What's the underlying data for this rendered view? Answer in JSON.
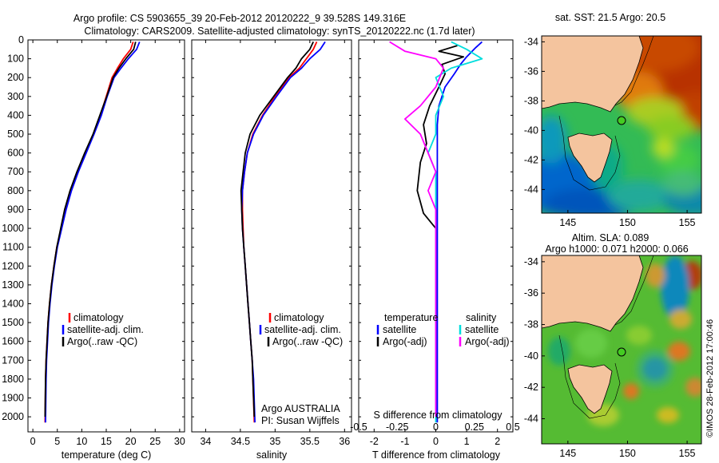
{
  "title": {
    "line1": "Argo profile: CS 5903655_39 20-Feb-2012 20120222_9 39.528S 149.316E",
    "line2": "Climatology: CARS2009. Satellite-adjusted climatology: synTS_20120222.nc (1.7d later)"
  },
  "colors": {
    "climatology": "#ff0000",
    "satellite": "#0000ff",
    "argo": "#000000",
    "s_sat": "#00dddd",
    "s_argo": "#ff00ff"
  },
  "chart_data": [
    {
      "type": "line",
      "panel": "temperature",
      "xlabel": "temperature (deg C)",
      "xlim": [
        -1,
        31
      ],
      "xticks": [
        0,
        5,
        10,
        15,
        20,
        25,
        30
      ],
      "ylim": [
        2080,
        0
      ],
      "yticks": [
        0,
        100,
        200,
        300,
        400,
        500,
        600,
        700,
        800,
        900,
        1000,
        1100,
        1200,
        1300,
        1400,
        1500,
        1600,
        1700,
        1800,
        1900,
        2000
      ],
      "legend": [
        "climatology",
        "satellite-adj. clim.",
        "Argo(..raw -QC)"
      ],
      "series": [
        {
          "name": "climatology",
          "color": "#ff0000",
          "x": [
            20.5,
            20.0,
            18.5,
            17.3,
            16.2,
            15.0,
            13.8,
            12.4,
            10.8,
            9.2,
            7.8,
            6.7,
            5.8,
            4.9,
            4.3,
            3.8,
            3.4,
            3.1,
            2.9,
            2.7,
            2.6,
            2.5
          ],
          "y": [
            10,
            50,
            100,
            150,
            200,
            300,
            400,
            500,
            600,
            700,
            800,
            900,
            1000,
            1100,
            1200,
            1300,
            1400,
            1500,
            1600,
            1700,
            1800,
            2030
          ]
        },
        {
          "name": "satellite-adj. clim.",
          "color": "#0000ff",
          "x": [
            21.8,
            21.2,
            19.5,
            18.0,
            16.6,
            15.2,
            14.0,
            12.5,
            10.9,
            9.3,
            7.9,
            6.8,
            5.9,
            5.0,
            4.4,
            3.9,
            3.5,
            3.2,
            3.0,
            2.8,
            2.7,
            2.6
          ],
          "y": [
            10,
            50,
            100,
            150,
            200,
            300,
            400,
            500,
            600,
            700,
            800,
            900,
            1000,
            1100,
            1200,
            1300,
            1400,
            1500,
            1600,
            1700,
            1800,
            2030
          ]
        },
        {
          "name": "Argo(..raw -QC)",
          "color": "#000000",
          "x": [
            21.0,
            20.6,
            19.0,
            17.6,
            16.4,
            15.1,
            13.7,
            12.3,
            10.6,
            9.0,
            7.6,
            6.5,
            5.7,
            4.9,
            4.3,
            3.8,
            3.4,
            3.1,
            2.9,
            2.7,
            2.6,
            2.5
          ],
          "y": [
            10,
            50,
            100,
            150,
            200,
            300,
            400,
            500,
            600,
            700,
            800,
            900,
            1000,
            1100,
            1200,
            1300,
            1400,
            1500,
            1600,
            1700,
            1800,
            2000
          ]
        }
      ]
    },
    {
      "type": "line",
      "panel": "salinity",
      "xlabel": "salinity",
      "xlim": [
        33.8,
        36.1
      ],
      "xticks": [
        34,
        34.5,
        35,
        35.5,
        36
      ],
      "ylim": [
        2080,
        0
      ],
      "legend": [
        "climatology",
        "satellite-adj. clim.",
        "Argo(..raw -QC)"
      ],
      "annotation": [
        "Argo AUSTRALIA",
        "PI: Susan Wijffels"
      ],
      "series": [
        {
          "name": "climatology",
          "color": "#ff0000",
          "x": [
            35.6,
            35.55,
            35.45,
            35.35,
            35.2,
            35.0,
            34.82,
            34.68,
            34.6,
            34.56,
            34.53,
            34.53,
            34.54,
            34.55,
            34.57,
            34.59,
            34.61,
            34.63,
            34.65,
            34.67,
            34.68,
            34.7
          ],
          "y": [
            10,
            50,
            100,
            150,
            200,
            300,
            400,
            500,
            600,
            700,
            800,
            900,
            1000,
            1100,
            1200,
            1300,
            1400,
            1500,
            1600,
            1700,
            1800,
            2030
          ]
        },
        {
          "name": "satellite-adj. clim.",
          "color": "#0000ff",
          "x": [
            35.72,
            35.65,
            35.5,
            35.38,
            35.22,
            35.02,
            34.83,
            34.69,
            34.6,
            34.56,
            34.53,
            34.52,
            34.53,
            34.55,
            34.57,
            34.59,
            34.61,
            34.63,
            34.65,
            34.67,
            34.69,
            34.71
          ],
          "y": [
            10,
            50,
            100,
            150,
            200,
            300,
            400,
            500,
            600,
            700,
            800,
            900,
            1000,
            1100,
            1200,
            1300,
            1400,
            1500,
            1600,
            1700,
            1800,
            2030
          ]
        },
        {
          "name": "Argo(..raw -QC)",
          "color": "#000000",
          "x": [
            35.55,
            35.5,
            35.38,
            35.3,
            35.18,
            34.98,
            34.78,
            34.64,
            34.57,
            34.54,
            34.51,
            34.52,
            34.53,
            34.55,
            34.57,
            34.59,
            34.61,
            34.63,
            34.65,
            34.67,
            34.68,
            34.7
          ],
          "y": [
            10,
            50,
            100,
            150,
            200,
            300,
            400,
            500,
            600,
            700,
            800,
            900,
            1000,
            1100,
            1200,
            1300,
            1400,
            1500,
            1600,
            1700,
            1800,
            2000
          ]
        }
      ]
    },
    {
      "type": "line",
      "panel": "difference",
      "xlabel": "T difference from climatology",
      "xlabel_top": "S difference from climatology",
      "xlim": [
        -2.5,
        2.5
      ],
      "xticks": [
        -2,
        -1,
        0,
        1,
        2
      ],
      "xticks_top": [
        "-0.5",
        "-0.25",
        "0",
        "0.25",
        "0.5"
      ],
      "legend_titles": [
        "temperature",
        "salinity"
      ],
      "legend": [
        "satellite",
        "Argo(-adj)",
        "satellite",
        "Argo(-adj)"
      ],
      "series": [
        {
          "name": "satellite",
          "group": "temperature",
          "color": "#0000ff",
          "x": [
            1.5,
            1.3,
            1.0,
            0.8,
            0.6,
            0.3,
            0.1,
            0.05,
            0.05,
            0.05,
            0.05,
            0.05,
            0.05,
            0.05,
            0.05,
            0.05,
            0.05,
            0.05,
            0.05,
            0.05,
            0.05
          ],
          "y": [
            10,
            40,
            90,
            130,
            180,
            250,
            350,
            450,
            550,
            650,
            750,
            850,
            950,
            1050,
            1200,
            1400,
            1600,
            1800,
            1900,
            2000,
            2030
          ]
        },
        {
          "name": "Argo(-adj)",
          "group": "temperature",
          "color": "#000000",
          "x": [
            0.7,
            0.1,
            0.9,
            0.2,
            0.3,
            0.1,
            -0.2,
            -0.4,
            -0.3,
            -0.5,
            -0.6,
            -0.4,
            0.0,
            0.0,
            0.0,
            0.0,
            0.0,
            0.0,
            0.0,
            0.0
          ],
          "y": [
            30,
            60,
            90,
            130,
            180,
            250,
            350,
            450,
            550,
            650,
            800,
            920,
            1000,
            1100,
            1200,
            1400,
            1600,
            1800,
            1950,
            2000
          ]
        },
        {
          "name": "satellite",
          "group": "salinity",
          "color": "#00dddd",
          "x": [
            0.1,
            0.2,
            0.3,
            0.1,
            0.0,
            0.05,
            0.0,
            0.0,
            -0.05,
            0.0,
            0.0,
            0.0,
            0.0,
            0.0,
            0.0,
            0.0,
            0.0,
            0.0,
            0.0
          ],
          "y": [
            10,
            50,
            100,
            150,
            200,
            300,
            400,
            500,
            600,
            700,
            800,
            900,
            1000,
            1200,
            1400,
            1600,
            1800,
            2000,
            2030
          ]
        },
        {
          "name": "Argo(-adj)",
          "group": "salinity",
          "color": "#ff00ff",
          "x": [
            -0.3,
            -0.2,
            0.0,
            0.05,
            0.0,
            -0.1,
            -0.2,
            -0.1,
            -0.05,
            0.0,
            -0.05,
            0.0,
            0.0,
            0.0,
            0.0,
            0.0,
            0.0
          ],
          "y": [
            10,
            60,
            100,
            150,
            250,
            350,
            420,
            500,
            600,
            700,
            800,
            900,
            1000,
            1200,
            1500,
            1800,
            2000
          ]
        }
      ]
    },
    {
      "type": "heatmap",
      "panel": "sst-map",
      "title": "sat. SST: 21.5 Argo: 20.5",
      "xticks": [
        145,
        150,
        155
      ],
      "yticks": [
        -34,
        -36,
        -38,
        -40,
        -42,
        -44
      ],
      "xlim": [
        142.8,
        156.2
      ],
      "ylim": [
        -45.6,
        -33.6
      ],
      "argo_position": {
        "lon": 149.316,
        "lat": -39.528
      }
    },
    {
      "type": "heatmap",
      "panel": "sla-map",
      "title": [
        "Altim. SLA: 0.089",
        "Argo h1000: 0.071 h2000: 0.066"
      ],
      "xticks": [
        145,
        150,
        155
      ],
      "yticks": [
        -34,
        -36,
        -38,
        -40,
        -42,
        -44
      ],
      "xlim": [
        142.8,
        156.2
      ],
      "ylim": [
        -45.6,
        -33.6
      ],
      "argo_position": {
        "lon": 149.316,
        "lat": -39.528
      }
    }
  ],
  "side_caption": "©IMOS 28-Feb-2012 17:00:46"
}
